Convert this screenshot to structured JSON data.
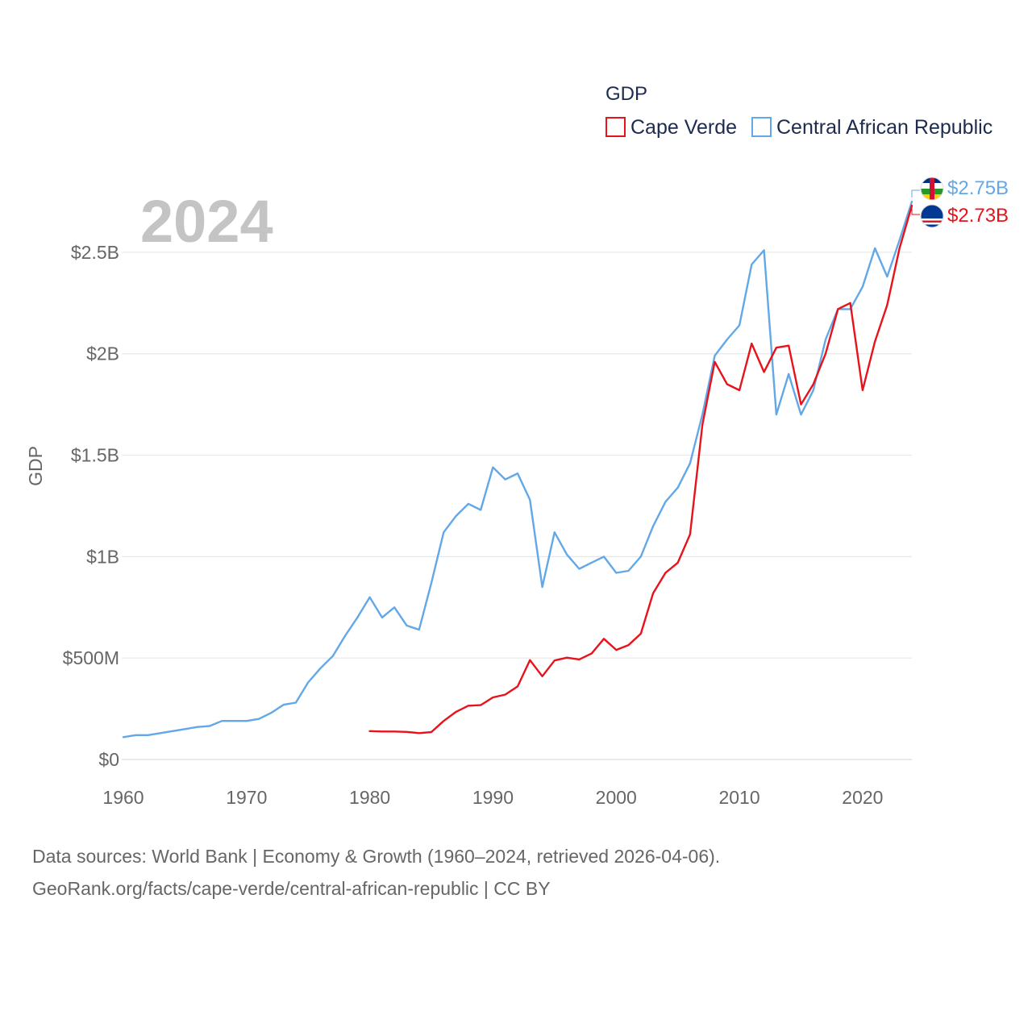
{
  "chart_data": {
    "type": "line",
    "title": "",
    "year_label": "2024",
    "ylabel": "GDP",
    "xlabel": "",
    "xlim": [
      1960,
      2024
    ],
    "ylim": [
      0,
      2.75
    ],
    "x_ticks": [
      {
        "value": 1960,
        "label": "1960"
      },
      {
        "value": 1970,
        "label": "1970"
      },
      {
        "value": 1980,
        "label": "1980"
      },
      {
        "value": 1990,
        "label": "1990"
      },
      {
        "value": 2000,
        "label": "2000"
      },
      {
        "value": 2010,
        "label": "2010"
      },
      {
        "value": 2020,
        "label": "2020"
      }
    ],
    "y_ticks": [
      {
        "value": 0,
        "label": "$0"
      },
      {
        "value": 0.5,
        "label": "$500M"
      },
      {
        "value": 1.0,
        "label": "$1B"
      },
      {
        "value": 1.5,
        "label": "$1.5B"
      },
      {
        "value": 2.0,
        "label": "$2B"
      },
      {
        "value": 2.5,
        "label": "$2.5B"
      }
    ],
    "legend": {
      "title": "GDP",
      "position": "top-right",
      "entries": [
        {
          "name": "Cape Verde",
          "color": "#e8121b"
        },
        {
          "name": "Central African Republic",
          "color": "#62a8e8"
        }
      ]
    },
    "units": "USD billions",
    "series": [
      {
        "name": "Central African Republic",
        "color": "#62a8e8",
        "end_label": "$2.75B",
        "x": [
          1960,
          1961,
          1962,
          1963,
          1964,
          1965,
          1966,
          1967,
          1968,
          1969,
          1970,
          1971,
          1972,
          1973,
          1974,
          1975,
          1976,
          1977,
          1978,
          1979,
          1980,
          1981,
          1982,
          1983,
          1984,
          1985,
          1986,
          1987,
          1988,
          1989,
          1990,
          1991,
          1992,
          1993,
          1994,
          1995,
          1996,
          1997,
          1998,
          1999,
          2000,
          2001,
          2002,
          2003,
          2004,
          2005,
          2006,
          2007,
          2008,
          2009,
          2010,
          2011,
          2012,
          2013,
          2014,
          2015,
          2016,
          2017,
          2018,
          2019,
          2020,
          2021,
          2022,
          2023,
          2024
        ],
        "values": [
          0.11,
          0.12,
          0.12,
          0.13,
          0.14,
          0.15,
          0.16,
          0.165,
          0.19,
          0.19,
          0.19,
          0.2,
          0.23,
          0.27,
          0.28,
          0.38,
          0.45,
          0.51,
          0.61,
          0.7,
          0.8,
          0.7,
          0.75,
          0.66,
          0.64,
          0.87,
          1.12,
          1.2,
          1.26,
          1.23,
          1.44,
          1.38,
          1.41,
          1.28,
          0.85,
          1.12,
          1.01,
          0.94,
          0.97,
          1.0,
          0.92,
          0.93,
          1.0,
          1.15,
          1.27,
          1.34,
          1.46,
          1.7,
          1.99,
          2.07,
          2.14,
          2.44,
          2.51,
          1.7,
          1.9,
          1.7,
          1.82,
          2.07,
          2.22,
          2.22,
          2.33,
          2.52,
          2.38,
          2.56,
          2.75
        ]
      },
      {
        "name": "Cape Verde",
        "color": "#e8121b",
        "end_label": "$2.73B",
        "x": [
          1980,
          1981,
          1982,
          1983,
          1984,
          1985,
          1986,
          1987,
          1988,
          1989,
          1990,
          1991,
          1992,
          1993,
          1994,
          1995,
          1996,
          1997,
          1998,
          1999,
          2000,
          2001,
          2002,
          2003,
          2004,
          2005,
          2006,
          2007,
          2008,
          2009,
          2010,
          2011,
          2012,
          2013,
          2014,
          2015,
          2016,
          2017,
          2018,
          2019,
          2020,
          2021,
          2022,
          2023,
          2024
        ],
        "values": [
          0.14,
          0.138,
          0.138,
          0.136,
          0.13,
          0.135,
          0.19,
          0.235,
          0.265,
          0.268,
          0.306,
          0.32,
          0.36,
          0.49,
          0.41,
          0.488,
          0.502,
          0.493,
          0.522,
          0.595,
          0.54,
          0.564,
          0.62,
          0.82,
          0.92,
          0.97,
          1.11,
          1.65,
          1.96,
          1.85,
          1.82,
          2.05,
          1.91,
          2.03,
          2.04,
          1.75,
          1.85,
          2.0,
          2.22,
          2.25,
          1.82,
          2.06,
          2.24,
          2.52,
          2.73
        ]
      }
    ]
  },
  "source": {
    "line1": "Data sources: World Bank | Economy & Growth (1960–2024, retrieved 2026-04-06).",
    "line2": "GeoRank.org/facts/cape-verde/central-african-republic | CC BY"
  }
}
